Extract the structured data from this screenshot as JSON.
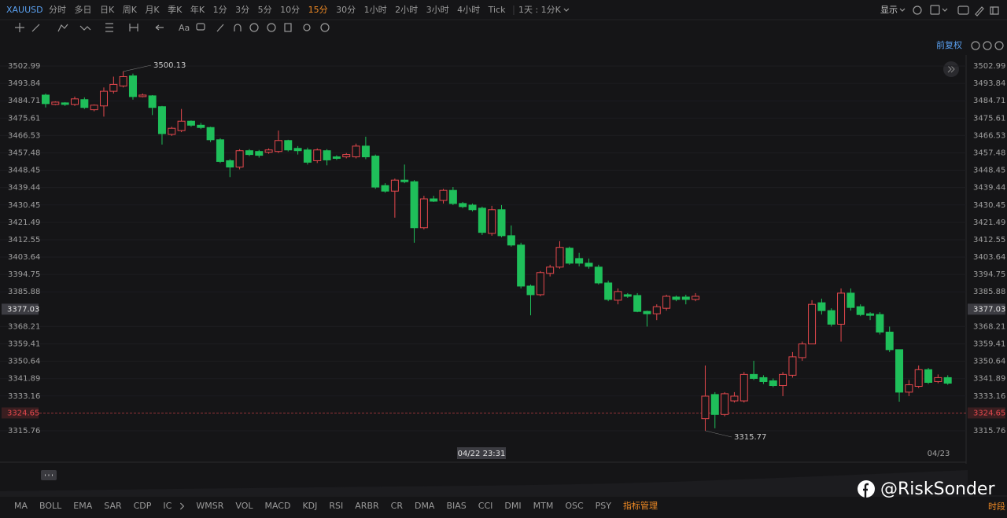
{
  "toolbar": {
    "symbol": "XAUUSD",
    "periods": [
      "分时",
      "多日",
      "日K",
      "周K",
      "月K",
      "季K",
      "年K",
      "1分",
      "3分",
      "5分",
      "10分",
      "15分",
      "30分",
      "1小时",
      "2小时",
      "3小时",
      "4小时",
      "Tick"
    ],
    "active": 11,
    "range": "1天 : 1分K",
    "display": "显示"
  },
  "tools": {
    "text_tool": "Aa"
  },
  "adjust": "前复权",
  "chart_data": {
    "type": "candlestick",
    "log_scale": true,
    "grid": true,
    "up_color": "#e5484d",
    "down_color": "#1fbf5a",
    "ylim": [
      3307.14,
      3508.8
    ],
    "yticks": [
      3502.99,
      3493.84,
      3484.71,
      3475.61,
      3466.53,
      3457.48,
      3448.45,
      3439.44,
      3430.45,
      3421.49,
      3412.55,
      3403.64,
      3394.75,
      3385.88,
      3368.21,
      3359.41,
      3350.64,
      3341.89,
      3333.16,
      3315.76
    ],
    "crosshair_price": 3377.03,
    "last_price": 3324.65,
    "crosshair_time": "04/22 23:31",
    "date_label": "04/23",
    "max_annotation": 3500.13,
    "max_index": 8,
    "min_annotation": 3315.77,
    "min_index": 68,
    "open": [
      3487.7,
      3482.8,
      3483.6,
      3482.8,
      3485.3,
      3480.0,
      3482.0,
      3489.7,
      3492.5,
      3497.8,
      3486.9,
      3487.3,
      3481.6,
      3467.1,
      3469.1,
      3474.0,
      3471.9,
      3470.7,
      3464.3,
      3453.4,
      3450.1,
      3458.6,
      3458.2,
      3457.8,
      3458.2,
      3463.9,
      3459.8,
      3459.0,
      3453.4,
      3458.6,
      3455.4,
      3455.4,
      3455.4,
      3461.0,
      3455.8,
      3440.5,
      3437.6,
      3443.3,
      3442.5,
      3418.7,
      3433.6,
      3432.8,
      3438.0,
      3431.2,
      3430.4,
      3428.8,
      3415.8,
      3428.0,
      3414.6,
      3409.8,
      3388.8,
      3384.4,
      3395.3,
      3398.5,
      3408.2,
      3402.9,
      3400.5,
      3398.5,
      3390.4,
      3381.6,
      3384.4,
      3384.0,
      3375.9,
      3374.7,
      3377.5,
      3383.2,
      3383.2,
      3382.0,
      3321.8,
      3333.9,
      3323.9,
      3330.7,
      3330.7,
      3344.0,
      3342.4,
      3340.8,
      3338.4,
      3343.6,
      3352.5,
      3359.4,
      3380.3,
      3376.3,
      3369.4,
      3385.2,
      3378.3,
      3374.7,
      3374.3,
      3365.4,
      3356.5,
      3335.1,
      3338.0,
      3346.4,
      3340.4,
      3342.4
    ],
    "high": [
      3488.5,
      3484.4,
      3484.0,
      3486.9,
      3486.5,
      3482.8,
      3491.7,
      3497.4,
      3500.13,
      3499.0,
      3488.5,
      3487.7,
      3482.0,
      3471.1,
      3480.4,
      3474.4,
      3473.1,
      3471.1,
      3465.1,
      3454.2,
      3459.4,
      3459.4,
      3459.0,
      3459.8,
      3469.1,
      3464.3,
      3461.0,
      3460.2,
      3459.8,
      3459.4,
      3456.2,
      3457.4,
      3462.3,
      3465.9,
      3456.6,
      3441.7,
      3444.1,
      3451.4,
      3443.3,
      3435.2,
      3435.2,
      3438.8,
      3439.7,
      3432.0,
      3431.2,
      3429.6,
      3430.0,
      3430.4,
      3419.9,
      3411.0,
      3389.6,
      3396.5,
      3399.7,
      3411.8,
      3409.0,
      3405.8,
      3402.9,
      3399.7,
      3391.6,
      3387.6,
      3385.2,
      3385.2,
      3376.3,
      3379.5,
      3384.4,
      3384.0,
      3384.4,
      3385.2,
      3348.5,
      3335.1,
      3335.1,
      3335.1,
      3345.2,
      3350.9,
      3343.6,
      3342.0,
      3345.2,
      3355.3,
      3360.6,
      3381.6,
      3382.4,
      3377.5,
      3387.6,
      3387.6,
      3379.5,
      3375.5,
      3375.5,
      3368.2,
      3356.5,
      3341.2,
      3348.5,
      3347.3,
      3344.0,
      3343.6
    ],
    "low": [
      3481.2,
      3482.4,
      3482.0,
      3482.0,
      3480.4,
      3479.2,
      3476.4,
      3488.5,
      3491.7,
      3485.3,
      3486.5,
      3477.2,
      3461.8,
      3466.3,
      3468.3,
      3471.1,
      3469.9,
      3463.1,
      3452.2,
      3444.9,
      3448.9,
      3455.8,
      3455.0,
      3457.0,
      3457.4,
      3458.2,
      3456.6,
      3451.4,
      3452.2,
      3451.0,
      3453.8,
      3454.6,
      3454.6,
      3454.2,
      3438.8,
      3436.8,
      3423.9,
      3441.7,
      3411.0,
      3417.9,
      3432.0,
      3431.2,
      3430.4,
      3428.8,
      3427.1,
      3415.0,
      3414.6,
      3413.8,
      3409.0,
      3387.6,
      3373.9,
      3383.6,
      3393.7,
      3397.7,
      3399.7,
      3398.9,
      3397.7,
      3389.6,
      3381.1,
      3379.5,
      3382.8,
      3375.5,
      3368.2,
      3371.5,
      3376.3,
      3381.1,
      3379.5,
      3381.1,
      3315.77,
      3317.0,
      3323.0,
      3329.9,
      3329.9,
      3341.2,
      3339.2,
      3337.6,
      3333.1,
      3342.4,
      3350.9,
      3359.4,
      3374.3,
      3368.2,
      3360.6,
      3376.3,
      3373.5,
      3371.5,
      3364.2,
      3355.3,
      3330.3,
      3333.1,
      3337.2,
      3339.2,
      3339.6,
      3338.8
    ],
    "close": [
      3483.2,
      3484.0,
      3482.8,
      3485.7,
      3481.2,
      3482.4,
      3489.7,
      3493.3,
      3497.4,
      3486.9,
      3487.7,
      3481.2,
      3467.5,
      3470.3,
      3474.0,
      3471.9,
      3470.7,
      3464.3,
      3453.0,
      3450.1,
      3458.6,
      3456.6,
      3456.2,
      3459.0,
      3463.9,
      3459.0,
      3458.6,
      3452.6,
      3459.0,
      3453.8,
      3454.6,
      3456.6,
      3461.0,
      3455.4,
      3439.7,
      3437.6,
      3443.3,
      3442.5,
      3418.7,
      3433.6,
      3432.4,
      3438.0,
      3431.2,
      3429.6,
      3428.0,
      3416.3,
      3428.0,
      3414.6,
      3409.8,
      3388.8,
      3384.4,
      3395.7,
      3398.5,
      3408.6,
      3400.5,
      3400.5,
      3398.9,
      3390.4,
      3382.0,
      3386.0,
      3383.6,
      3375.9,
      3374.7,
      3378.3,
      3383.6,
      3382.0,
      3382.0,
      3383.6,
      3333.1,
      3323.9,
      3334.3,
      3333.1,
      3344.0,
      3342.0,
      3340.4,
      3338.4,
      3344.0,
      3352.9,
      3359.4,
      3379.5,
      3376.3,
      3369.4,
      3385.2,
      3377.9,
      3374.3,
      3373.9,
      3365.4,
      3356.5,
      3335.1,
      3338.8,
      3346.4,
      3340.0,
      3342.4,
      3339.6
    ]
  },
  "indicators": {
    "main": [
      "MA",
      "BOLL",
      "EMA",
      "SAR",
      "CDP",
      "IC"
    ],
    "sub": [
      "WMSR",
      "VOL",
      "MACD",
      "KDJ",
      "RSI",
      "ARBR",
      "CR",
      "DMA",
      "BIAS",
      "CCI",
      "DMI",
      "MTM",
      "OSC",
      "PSY"
    ],
    "manage": "指标管理"
  },
  "watermark": "@RiskSonder",
  "session": "时段"
}
